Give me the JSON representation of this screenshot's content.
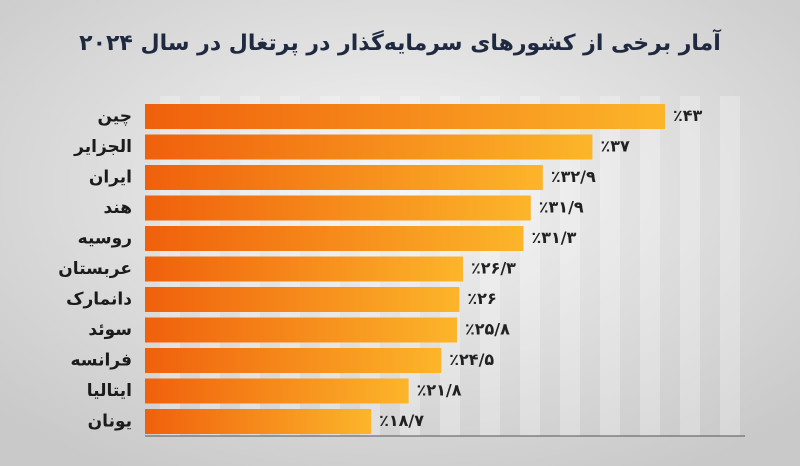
{
  "chart_data": {
    "type": "bar",
    "orientation": "horizontal",
    "title": "آمار برخی از کشورهای سرمایه‌گذار در پرتغال در سال ۲۰۲۴",
    "categories": [
      "چین",
      "الجزایر",
      "ایران",
      "هند",
      "روسیه",
      "عربستان",
      "دانمارک",
      "سوئد",
      "فرانسه",
      "ایتالیا",
      "یونان"
    ],
    "values": [
      43,
      37,
      32.9,
      31.9,
      31.3,
      26.3,
      26,
      25.8,
      24.5,
      21.8,
      18.7
    ],
    "value_labels": [
      "٪۴۳",
      "٪۳۷",
      "٪۳۲/۹",
      "٪۳۱/۹",
      "٪۳۱/۳",
      "٪۲۶/۳",
      "٪۲۶",
      "٪۲۵/۸",
      "٪۲۴/۵",
      "٪۲۱/۸",
      "٪۱۸/۷"
    ],
    "gradient": [
      "#f0600c",
      "#fcb52a"
    ]
  }
}
